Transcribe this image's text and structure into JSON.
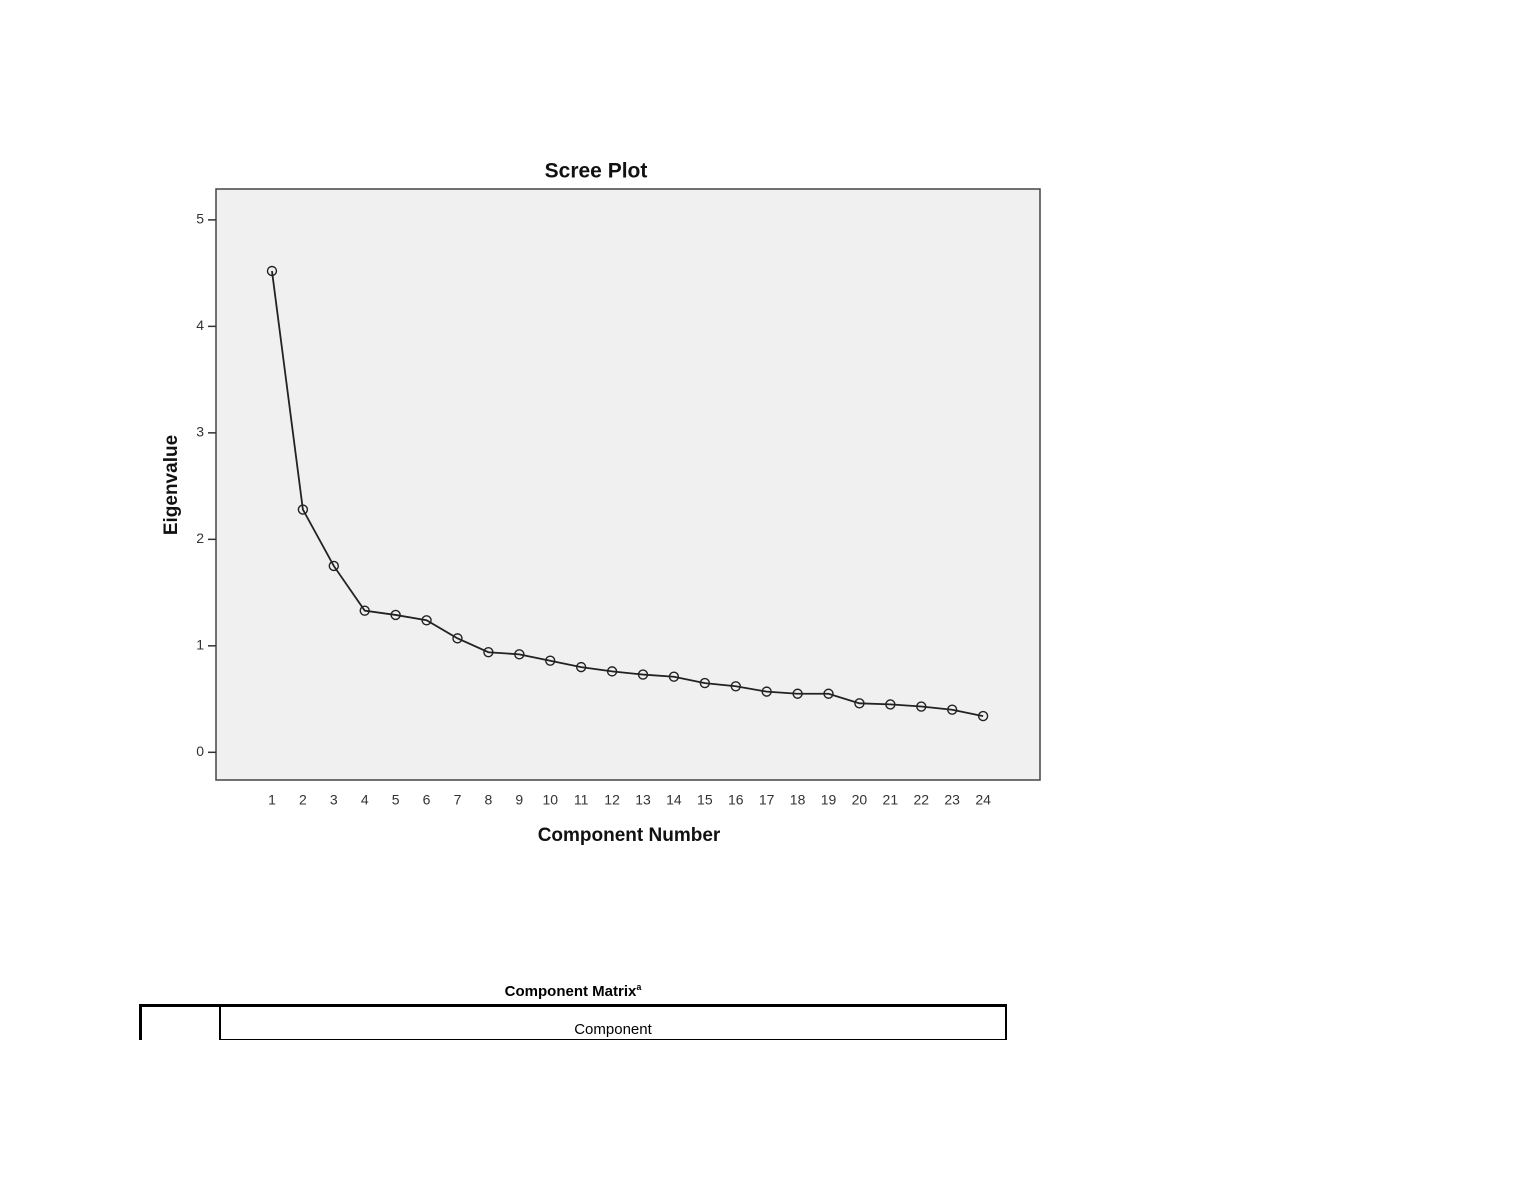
{
  "chart_data": {
    "type": "line",
    "title": "Scree Plot",
    "x_label": "Component Number",
    "y_label": "Eigenvalue",
    "x": [
      1,
      2,
      3,
      4,
      5,
      6,
      7,
      8,
      9,
      10,
      11,
      12,
      13,
      14,
      15,
      16,
      17,
      18,
      19,
      20,
      21,
      22,
      23,
      24
    ],
    "values": [
      4.52,
      2.28,
      1.75,
      1.33,
      1.29,
      1.24,
      1.07,
      0.94,
      0.92,
      0.86,
      0.8,
      0.76,
      0.73,
      0.71,
      0.65,
      0.62,
      0.57,
      0.55,
      0.55,
      0.46,
      0.45,
      0.43,
      0.4,
      0.34
    ],
    "color": "#222222",
    "markers": true,
    "xlim": [
      -0.81,
      25.84
    ],
    "xticks": [
      1,
      2,
      3,
      4,
      5,
      6,
      7,
      8,
      9,
      10,
      11,
      12,
      13,
      14,
      15,
      16,
      17,
      18,
      19,
      20,
      21,
      22,
      23,
      24
    ],
    "ylim": [
      -0.26,
      5.29
    ],
    "yticks": [
      0,
      1,
      2,
      3,
      4,
      5
    ]
  },
  "table": {
    "title": "Component Matrix",
    "title_note": "a",
    "header": "Component"
  }
}
